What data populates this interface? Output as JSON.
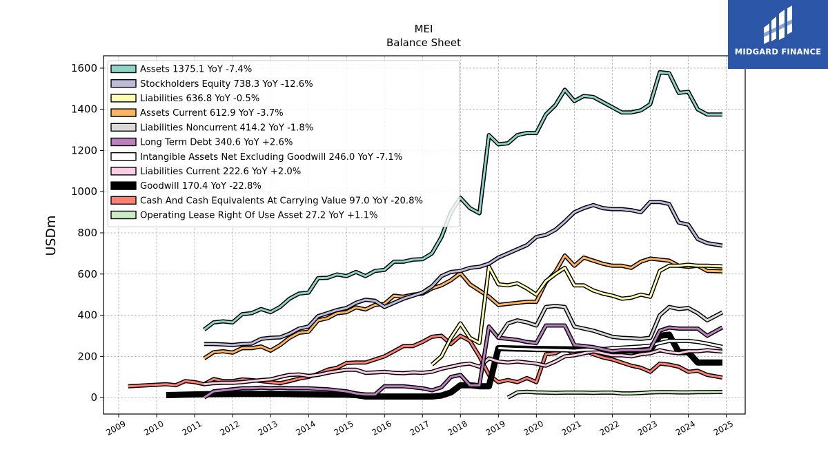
{
  "brand": {
    "name": "MIDGARD FINANCE",
    "logo_icon": "midgard-logo-icon",
    "color": "#2c56a8"
  },
  "chart_data": {
    "type": "line",
    "title": "MEI",
    "subtitle": "Balance  Sheet",
    "xlabel": "",
    "ylabel": "USDm",
    "xlim": [
      2008.6,
      2025.5
    ],
    "ylim": [
      -80,
      1660
    ],
    "yticks": [
      0,
      200,
      400,
      600,
      800,
      1000,
      1200,
      1400,
      1600
    ],
    "xticks": [
      2009,
      2010,
      2011,
      2012,
      2013,
      2014,
      2015,
      2016,
      2017,
      2018,
      2019,
      2020,
      2021,
      2022,
      2023,
      2024,
      2025
    ],
    "grid": true,
    "legend_position": "top-left",
    "series": [
      {
        "name": "Assets",
        "legend": "Assets  1375.1 YoY -7.4%",
        "color": "#8dd3c7",
        "width": 3,
        "x": [
          2011.25,
          2011.5,
          2011.75,
          2012.0,
          2012.25,
          2012.5,
          2012.75,
          2013.0,
          2013.25,
          2013.5,
          2013.75,
          2014.0,
          2014.25,
          2014.5,
          2014.75,
          2015.0,
          2015.25,
          2015.5,
          2015.75,
          2016.0,
          2016.25,
          2016.5,
          2016.75,
          2017.0,
          2017.25,
          2017.5,
          2017.75,
          2018.0,
          2018.25,
          2018.5,
          2018.75,
          2019.0,
          2019.25,
          2019.5,
          2019.75,
          2020.0,
          2020.25,
          2020.5,
          2020.75,
          2021.0,
          2021.25,
          2021.5,
          2021.75,
          2022.0,
          2022.25,
          2022.5,
          2022.75,
          2023.0,
          2023.25,
          2023.5,
          2023.75,
          2024.0,
          2024.25,
          2024.5,
          2024.9
        ],
        "y": [
          330,
          365,
          370,
          365,
          405,
          410,
          430,
          415,
          440,
          480,
          505,
          510,
          580,
          582,
          598,
          590,
          610,
          590,
          615,
          620,
          660,
          660,
          670,
          672,
          700,
          780,
          900,
          970,
          920,
          895,
          1275,
          1230,
          1235,
          1275,
          1285,
          1285,
          1375,
          1420,
          1495,
          1440,
          1465,
          1460,
          1435,
          1410,
          1385,
          1385,
          1395,
          1425,
          1580,
          1575,
          1480,
          1485,
          1400,
          1375,
          1375
        ]
      },
      {
        "name": "Stockholders Equity",
        "legend": "Stockholders Equity  738.3 YoY -12.6%",
        "color": "#bebada",
        "width": 3,
        "x": [
          2011.25,
          2011.5,
          2011.75,
          2012.0,
          2012.25,
          2012.5,
          2012.75,
          2013.0,
          2013.25,
          2013.5,
          2013.75,
          2014.0,
          2014.25,
          2014.5,
          2014.75,
          2015.0,
          2015.25,
          2015.5,
          2015.75,
          2016.0,
          2016.25,
          2016.5,
          2016.75,
          2017.0,
          2017.25,
          2017.5,
          2017.75,
          2018.0,
          2018.25,
          2018.5,
          2018.75,
          2019.0,
          2019.25,
          2019.5,
          2019.75,
          2020.0,
          2020.25,
          2020.5,
          2020.75,
          2021.0,
          2021.25,
          2021.5,
          2021.75,
          2022.0,
          2022.25,
          2022.5,
          2022.75,
          2023.0,
          2023.25,
          2023.5,
          2023.75,
          2024.0,
          2024.25,
          2024.5,
          2024.9
        ],
        "y": [
          260,
          260,
          258,
          255,
          260,
          262,
          285,
          290,
          292,
          310,
          335,
          345,
          395,
          410,
          425,
          435,
          460,
          475,
          470,
          440,
          460,
          480,
          495,
          510,
          540,
          590,
          610,
          615,
          630,
          635,
          650,
          680,
          700,
          720,
          740,
          780,
          790,
          815,
          855,
          900,
          920,
          935,
          920,
          915,
          915,
          910,
          900,
          950,
          950,
          940,
          850,
          840,
          770,
          750,
          738
        ]
      },
      {
        "name": "Liabilities",
        "legend": "Liabilities  636.8 YoY -0.5%",
        "color": "#ffffb3",
        "width": 3,
        "x": [
          2017.25,
          2017.5,
          2017.75,
          2018.0,
          2018.25,
          2018.5,
          2018.75,
          2019.0,
          2019.25,
          2019.5,
          2019.75,
          2020.0,
          2020.25,
          2020.5,
          2020.75,
          2021.0,
          2021.25,
          2021.5,
          2021.75,
          2022.0,
          2022.25,
          2022.5,
          2022.75,
          2023.0,
          2023.25,
          2023.5,
          2023.75,
          2024.0,
          2024.25,
          2024.5,
          2024.9
        ],
        "y": [
          160,
          200,
          290,
          360,
          290,
          265,
          635,
          550,
          545,
          555,
          530,
          500,
          565,
          600,
          630,
          545,
          545,
          520,
          505,
          495,
          480,
          485,
          500,
          490,
          615,
          640,
          640,
          645,
          640,
          640,
          637
        ]
      },
      {
        "name": "Assets Current",
        "legend": "Assets Current  612.9 YoY -3.7%",
        "color": "#fdb462",
        "width": 3,
        "x": [
          2011.25,
          2011.5,
          2011.75,
          2012.0,
          2012.25,
          2012.5,
          2012.75,
          2013.0,
          2013.25,
          2013.5,
          2013.75,
          2014.0,
          2014.25,
          2014.5,
          2014.75,
          2015.0,
          2015.25,
          2015.5,
          2015.75,
          2016.0,
          2016.25,
          2016.5,
          2016.75,
          2017.0,
          2017.25,
          2017.5,
          2017.75,
          2018.0,
          2018.25,
          2018.5,
          2018.75,
          2019.0,
          2019.25,
          2019.5,
          2019.75,
          2020.0,
          2020.25,
          2020.5,
          2020.75,
          2021.0,
          2021.25,
          2021.5,
          2021.75,
          2022.0,
          2022.25,
          2022.5,
          2022.75,
          2023.0,
          2023.25,
          2023.5,
          2023.75,
          2024.0,
          2024.25,
          2024.5,
          2024.9
        ],
        "y": [
          190,
          220,
          225,
          218,
          240,
          240,
          248,
          228,
          255,
          290,
          315,
          320,
          375,
          385,
          410,
          415,
          438,
          428,
          450,
          455,
          495,
          490,
          500,
          505,
          530,
          545,
          570,
          605,
          550,
          520,
          490,
          450,
          455,
          460,
          465,
          465,
          560,
          610,
          690,
          640,
          680,
          665,
          650,
          640,
          640,
          630,
          660,
          675,
          670,
          665,
          640,
          635,
          640,
          615,
          613
        ]
      },
      {
        "name": "Liabilities Noncurrent",
        "legend": "Liabilities Noncurrent  414.2 YoY -1.8%",
        "color": "#d9d9d9",
        "width": 3,
        "x": [
          2019.0,
          2019.25,
          2019.5,
          2019.75,
          2020.0,
          2020.25,
          2020.5,
          2020.75,
          2021.0,
          2021.25,
          2021.5,
          2021.75,
          2022.0,
          2022.25,
          2022.5,
          2022.75,
          2023.0,
          2023.25,
          2023.5,
          2023.75,
          2024.0,
          2024.25,
          2024.5,
          2024.9
        ],
        "y": [
          290,
          360,
          375,
          365,
          350,
          440,
          445,
          440,
          345,
          335,
          325,
          310,
          295,
          290,
          288,
          285,
          290,
          400,
          440,
          430,
          435,
          410,
          375,
          414
        ]
      },
      {
        "name": "Long Term Debt",
        "legend": "Long Term Debt  340.6 YoY +2.6%",
        "color": "#bc80bd",
        "width": 3,
        "x": [
          2011.25,
          2011.5,
          2011.75,
          2012.0,
          2012.25,
          2012.5,
          2012.75,
          2013.0,
          2013.25,
          2013.5,
          2013.75,
          2014.0,
          2014.25,
          2014.5,
          2014.75,
          2015.0,
          2015.25,
          2015.5,
          2015.75,
          2016.0,
          2016.25,
          2016.5,
          2016.75,
          2017.0,
          2017.25,
          2017.5,
          2017.75,
          2018.0,
          2018.25,
          2018.5,
          2018.75,
          2019.0,
          2019.25,
          2019.5,
          2019.75,
          2020.0,
          2020.25,
          2020.5,
          2020.75,
          2021.0,
          2021.25,
          2021.5,
          2021.75,
          2022.0,
          2022.25,
          2022.5,
          2022.75,
          2023.0,
          2023.25,
          2023.5,
          2023.75,
          2024.0,
          2024.25,
          2024.5,
          2024.9
        ],
        "y": [
          0,
          30,
          35,
          40,
          45,
          45,
          48,
          45,
          48,
          45,
          45,
          45,
          42,
          40,
          35,
          30,
          20,
          15,
          15,
          55,
          55,
          55,
          50,
          45,
          35,
          50,
          100,
          110,
          60,
          60,
          345,
          290,
          285,
          280,
          270,
          265,
          350,
          350,
          350,
          255,
          250,
          245,
          235,
          225,
          230,
          230,
          230,
          235,
          325,
          340,
          335,
          335,
          335,
          300,
          341
        ]
      },
      {
        "name": "Intangible Assets Net Excluding Goodwill",
        "legend": "Intangible Assets Net Excluding Goodwill  246.0 YoY -7.1%",
        "color": "#ffffff",
        "width": 3,
        "x": [
          2019.0,
          2019.25,
          2019.5,
          2019.75,
          2020.0,
          2020.25,
          2020.5,
          2020.75,
          2021.0,
          2021.25,
          2021.5,
          2021.75,
          2022.0,
          2022.25,
          2022.5,
          2022.75,
          2023.0,
          2023.25,
          2023.5,
          2023.75,
          2024.0,
          2024.25,
          2024.5,
          2024.9
        ],
        "y": [
          240,
          238,
          236,
          235,
          233,
          232,
          231,
          230,
          228,
          232,
          234,
          235,
          240,
          242,
          245,
          248,
          252,
          265,
          275,
          275,
          275,
          270,
          262,
          246
        ]
      },
      {
        "name": "Liabilities Current",
        "legend": "Liabilities Current  222.6 YoY +2.0%",
        "color": "#fccde5",
        "width": 3,
        "x": [
          2011.25,
          2011.5,
          2011.75,
          2012.0,
          2012.25,
          2012.5,
          2012.75,
          2013.0,
          2013.25,
          2013.5,
          2013.75,
          2014.0,
          2014.25,
          2014.5,
          2014.75,
          2015.0,
          2015.25,
          2015.5,
          2015.75,
          2016.0,
          2016.25,
          2016.5,
          2016.75,
          2017.0,
          2017.25,
          2017.5,
          2017.75,
          2018.0,
          2018.25,
          2018.5,
          2018.75,
          2019.0,
          2019.25,
          2019.5,
          2019.75,
          2020.0,
          2020.25,
          2020.5,
          2020.75,
          2021.0,
          2021.25,
          2021.5,
          2021.75,
          2022.0,
          2022.25,
          2022.5,
          2022.75,
          2023.0,
          2023.25,
          2023.5,
          2023.75,
          2024.0,
          2024.25,
          2024.5,
          2024.9
        ],
        "y": [
          65,
          70,
          72,
          72,
          75,
          80,
          85,
          88,
          100,
          110,
          112,
          105,
          110,
          120,
          128,
          135,
          135,
          120,
          122,
          125,
          120,
          118,
          122,
          120,
          125,
          140,
          150,
          160,
          165,
          150,
          190,
          175,
          170,
          175,
          170,
          165,
          155,
          175,
          200,
          205,
          215,
          225,
          215,
          205,
          205,
          200,
          210,
          215,
          230,
          220,
          215,
          225,
          225,
          230,
          223
        ]
      },
      {
        "name": "Goodwill",
        "legend": "Goodwill  170.4 YoY -22.8%",
        "color": "#000000",
        "width": 7,
        "x": [
          2010.25,
          2010.75,
          2011.25,
          2011.75,
          2012.25,
          2012.75,
          2013.25,
          2013.75,
          2014.25,
          2014.75,
          2015.0,
          2015.25,
          2015.5,
          2015.75,
          2016.0,
          2016.5,
          2017.0,
          2017.25,
          2017.5,
          2017.75,
          2018.0,
          2018.25,
          2018.5,
          2018.75,
          2019.0,
          2019.5,
          2020.0,
          2020.5,
          2021.0,
          2021.5,
          2022.0,
          2022.5,
          2023.0,
          2023.25,
          2023.5,
          2023.75,
          2024.0,
          2024.25,
          2024.5,
          2024.9
        ],
        "y": [
          12,
          14,
          16,
          17,
          18,
          18,
          18,
          16,
          15,
          14,
          14,
          12,
          5,
          5,
          5,
          5,
          5,
          5,
          10,
          25,
          60,
          60,
          55,
          55,
          240,
          238,
          236,
          235,
          234,
          232,
          230,
          228,
          230,
          300,
          305,
          220,
          220,
          170,
          170,
          170
        ]
      },
      {
        "name": "Cash And Cash Equivalents At Carrying Value",
        "legend": "Cash And Cash Equivalents At Carrying Value  97.0 YoY -20.8%",
        "color": "#fb8072",
        "width": 3,
        "x": [
          2009.25,
          2009.75,
          2010.25,
          2010.5,
          2010.75,
          2011.0,
          2011.25,
          2011.5,
          2011.75,
          2012.0,
          2012.25,
          2012.5,
          2012.75,
          2013.0,
          2013.25,
          2013.5,
          2013.75,
          2014.0,
          2014.25,
          2014.5,
          2014.75,
          2015.0,
          2015.25,
          2015.5,
          2015.75,
          2016.0,
          2016.25,
          2016.5,
          2016.75,
          2017.0,
          2017.25,
          2017.5,
          2017.75,
          2018.0,
          2018.25,
          2018.5,
          2018.75,
          2019.0,
          2019.25,
          2019.5,
          2019.75,
          2020.0,
          2020.25,
          2020.5,
          2020.75,
          2021.0,
          2021.25,
          2021.5,
          2021.75,
          2022.0,
          2022.25,
          2022.5,
          2022.75,
          2023.0,
          2023.25,
          2023.5,
          2023.75,
          2024.0,
          2024.25,
          2024.5,
          2024.9
        ],
        "y": [
          55,
          60,
          65,
          60,
          80,
          75,
          65,
          90,
          80,
          80,
          88,
          85,
          80,
          75,
          70,
          80,
          92,
          100,
          115,
          135,
          145,
          168,
          170,
          170,
          185,
          200,
          225,
          250,
          250,
          270,
          295,
          300,
          260,
          300,
          275,
          200,
          110,
          75,
          85,
          75,
          95,
          75,
          210,
          215,
          240,
          210,
          230,
          210,
          195,
          185,
          170,
          155,
          145,
          125,
          165,
          160,
          150,
          125,
          130,
          110,
          97
        ]
      },
      {
        "name": "Operating Lease Right Of Use Asset",
        "legend": "Operating Lease Right Of Use Asset  27.2 YoY +1.1%",
        "color": "#ccebc5",
        "width": 3,
        "x": [
          2019.25,
          2019.5,
          2019.75,
          2020.0,
          2020.25,
          2020.5,
          2020.75,
          2021.0,
          2021.25,
          2021.5,
          2021.75,
          2022.0,
          2022.25,
          2022.5,
          2022.75,
          2023.0,
          2023.25,
          2023.5,
          2023.75,
          2024.0,
          2024.25,
          2024.5,
          2024.9
        ],
        "y": [
          0,
          25,
          28,
          25,
          24,
          23,
          24,
          24,
          24,
          23,
          24,
          24,
          20,
          20,
          22,
          25,
          26,
          26,
          25,
          25,
          26,
          26,
          27
        ]
      }
    ]
  }
}
